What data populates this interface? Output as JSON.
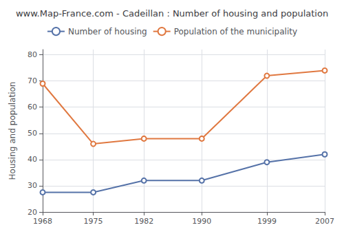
{
  "chart_data": {
    "type": "line",
    "title": "www.Map-France.com - Cadeillan : Number of housing and population",
    "ylabel": "Housing and population",
    "x": [
      1968,
      1975,
      1982,
      1990,
      1999,
      2007
    ],
    "series": [
      {
        "name": "Number of housing",
        "color": "#5572a8",
        "marker": "circle",
        "values": [
          27.5,
          27.5,
          32,
          32,
          39,
          42
        ]
      },
      {
        "name": "Population of the municipality",
        "color": "#e07840",
        "marker": "circle",
        "values": [
          69,
          46,
          48,
          48,
          72,
          74
        ]
      }
    ],
    "xlim": [
      1968,
      2007
    ],
    "xticks": [
      1968,
      1975,
      1982,
      1990,
      1999,
      2007
    ],
    "ylim": [
      20,
      82
    ],
    "yticks": [
      20,
      30,
      40,
      50,
      60,
      70,
      80
    ],
    "grid": true,
    "legend": "top"
  }
}
